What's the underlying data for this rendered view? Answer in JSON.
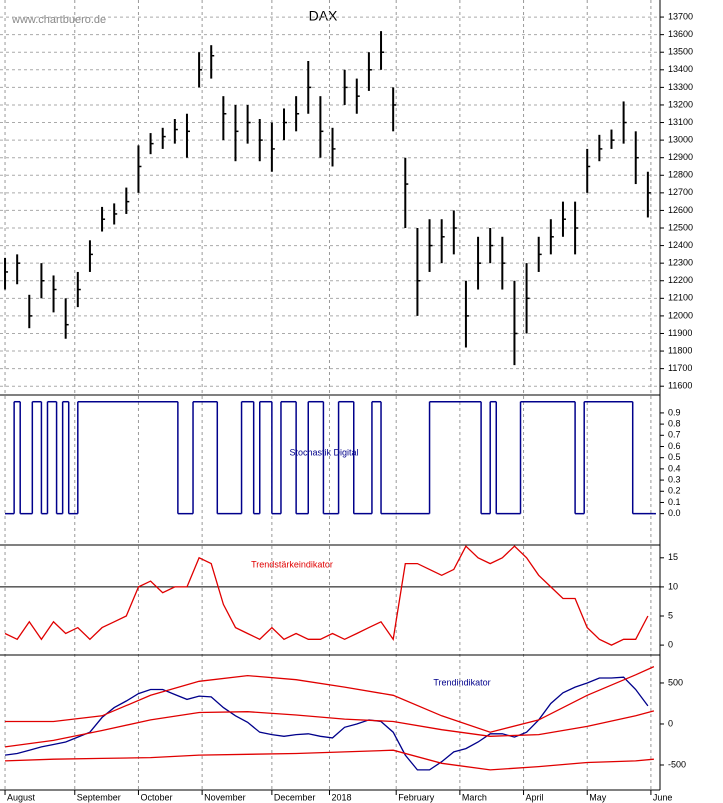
{
  "chart_data": [
    {
      "type": "ohlc",
      "title": "DAX",
      "source": "www.chartbuero.de",
      "color": "#000000",
      "grid": true,
      "x": [
        0,
        4,
        8,
        12,
        16,
        20,
        24,
        28,
        32,
        36,
        40,
        44,
        48,
        52,
        56,
        60,
        64,
        68,
        72,
        76,
        80,
        84,
        88,
        92,
        96,
        100,
        104,
        108,
        112,
        116,
        120,
        124,
        128,
        132,
        136,
        140,
        144,
        148,
        152,
        156,
        160,
        164,
        168,
        172,
        176,
        180,
        184,
        188,
        192,
        196,
        200,
        204,
        208,
        212
      ],
      "close": [
        12250,
        12300,
        12000,
        12200,
        12150,
        11950,
        12150,
        12350,
        12550,
        12580,
        12650,
        12850,
        12980,
        13020,
        13060,
        13050,
        13400,
        13480,
        13150,
        13050,
        13100,
        13000,
        12950,
        13100,
        13150,
        13300,
        13050,
        12950,
        13300,
        13250,
        13400,
        13500,
        13200,
        12750,
        12200,
        12400,
        12450,
        12500,
        12000,
        12300,
        12400,
        12300,
        11900,
        12100,
        12350,
        12450,
        12550,
        12500,
        12850,
        12950,
        13000,
        13100,
        12900,
        12700
      ],
      "high": [
        12330,
        12350,
        12120,
        12300,
        12230,
        12100,
        12250,
        12430,
        12620,
        12640,
        12730,
        12970,
        13040,
        13070,
        13120,
        13150,
        13500,
        13540,
        13250,
        13200,
        13200,
        13120,
        13100,
        13180,
        13250,
        13450,
        13250,
        13070,
        13400,
        13350,
        13500,
        13620,
        13300,
        12900,
        12500,
        12550,
        12550,
        12600,
        12200,
        12450,
        12500,
        12450,
        12200,
        12300,
        12450,
        12550,
        12650,
        12650,
        12950,
        13030,
        13060,
        13220,
        13050,
        12820
      ],
      "low": [
        12150,
        12180,
        11930,
        12100,
        12020,
        11870,
        12050,
        12250,
        12480,
        12520,
        12580,
        12700,
        12920,
        12950,
        12980,
        12900,
        13300,
        13350,
        13000,
        12880,
        12980,
        12880,
        12820,
        13000,
        13050,
        13150,
        12900,
        12850,
        13200,
        13150,
        13280,
        13400,
        13050,
        12500,
        12000,
        12250,
        12300,
        12350,
        11820,
        12150,
        12300,
        12150,
        11720,
        11900,
        12250,
        12350,
        12450,
        12350,
        12700,
        12880,
        12950,
        12980,
        12750,
        12560
      ],
      "ylim": [
        11550,
        13780
      ],
      "yticks": [
        11600,
        11700,
        11800,
        11900,
        12000,
        12100,
        12200,
        12300,
        12400,
        12500,
        12600,
        12700,
        12800,
        12900,
        13000,
        13100,
        13200,
        13300,
        13400,
        13500,
        13600,
        13700
      ]
    },
    {
      "type": "step",
      "label": "Stochastik Digital",
      "color": "#00008b",
      "x": [
        0,
        3,
        5,
        9,
        12,
        14,
        17,
        19,
        21,
        24,
        57,
        62,
        70,
        78,
        82,
        84,
        88,
        91,
        96,
        100,
        105,
        110,
        115,
        121,
        124,
        140,
        157,
        160,
        162,
        170,
        188,
        191,
        207,
        214
      ],
      "values": [
        0,
        1,
        0,
        1,
        0,
        1,
        0,
        1,
        0,
        1,
        0,
        1,
        0,
        1,
        0,
        1,
        0,
        1,
        0,
        1,
        0,
        1,
        0,
        1,
        0,
        1,
        0,
        1,
        0,
        1,
        0,
        1,
        0,
        0
      ],
      "ylim": [
        -0.28,
        1.06
      ],
      "yticks": [
        {
          "value": 0,
          "label": "0.0"
        },
        0.1,
        0.2,
        0.3,
        0.4,
        0.5,
        0.6,
        0.7,
        0.8,
        0.9
      ]
    },
    {
      "type": "line",
      "label": "Trendstärkeindikator",
      "reference_line": 10,
      "x": [
        0,
        4,
        8,
        12,
        16,
        20,
        24,
        28,
        32,
        36,
        40,
        44,
        48,
        52,
        56,
        60,
        64,
        68,
        72,
        76,
        80,
        84,
        88,
        92,
        96,
        100,
        104,
        108,
        112,
        116,
        120,
        124,
        128,
        132,
        136,
        140,
        144,
        148,
        152,
        156,
        160,
        164,
        168,
        172,
        176,
        180,
        184,
        188,
        192,
        196,
        200,
        204,
        208,
        212
      ],
      "series": [
        {
          "color": "#e00000",
          "values": [
            2,
            1,
            4,
            1,
            4,
            2,
            3,
            1,
            3,
            4,
            5,
            10,
            11,
            9,
            10,
            10,
            15,
            14,
            7,
            3,
            2,
            1,
            3,
            1,
            2,
            1,
            1,
            2,
            1,
            2,
            3,
            4,
            1,
            14,
            14,
            13,
            12,
            13,
            17,
            15,
            14,
            15,
            17,
            15,
            12,
            10,
            8,
            8,
            3,
            1,
            0,
            1,
            1,
            5
          ]
        }
      ],
      "ylim": [
        -1.7,
        17.2
      ],
      "yticks": [
        0,
        5,
        10,
        15
      ]
    },
    {
      "type": "line",
      "label": "Trendindikator",
      "x": [
        0,
        4,
        8,
        12,
        16,
        20,
        24,
        28,
        32,
        36,
        40,
        44,
        48,
        52,
        56,
        60,
        64,
        68,
        72,
        76,
        80,
        84,
        88,
        92,
        96,
        100,
        104,
        108,
        112,
        116,
        120,
        124,
        128,
        132,
        136,
        140,
        144,
        148,
        152,
        156,
        160,
        164,
        168,
        172,
        176,
        180,
        184,
        188,
        192,
        196,
        200,
        204,
        208,
        212
      ],
      "series": [
        {
          "color": "#00008b",
          "values": [
            -380,
            -360,
            -320,
            -280,
            -250,
            -220,
            -160,
            -100,
            80,
            200,
            280,
            370,
            420,
            420,
            360,
            300,
            340,
            330,
            200,
            100,
            20,
            -100,
            -130,
            -150,
            -130,
            -120,
            -150,
            -170,
            -40,
            0,
            50,
            30,
            -100,
            -380,
            -560,
            -560,
            -460,
            -340,
            -300,
            -220,
            -120,
            -120,
            -160,
            -100,
            50,
            250,
            380,
            450,
            500,
            560,
            560,
            570,
            420,
            220
          ]
        },
        {
          "color": "#e00000",
          "x": [
            0,
            16,
            32,
            48,
            64,
            80,
            96,
            112,
            128,
            144,
            160,
            176,
            192,
            208,
            214
          ],
          "values": [
            30,
            30,
            100,
            350,
            520,
            590,
            540,
            450,
            350,
            100,
            -100,
            50,
            350,
            600,
            700
          ]
        },
        {
          "color": "#e00000",
          "x": [
            0,
            16,
            32,
            48,
            64,
            80,
            96,
            112,
            128,
            144,
            160,
            176,
            192,
            208,
            214
          ],
          "values": [
            -280,
            -200,
            -80,
            50,
            140,
            150,
            110,
            60,
            30,
            -70,
            -150,
            -130,
            -30,
            100,
            160
          ]
        },
        {
          "color": "#e00000",
          "x": [
            0,
            16,
            32,
            48,
            64,
            80,
            96,
            112,
            128,
            144,
            160,
            176,
            192,
            208,
            214
          ],
          "values": [
            -450,
            -430,
            -420,
            -410,
            -380,
            -370,
            -360,
            -340,
            -320,
            -480,
            -560,
            -520,
            -470,
            -450,
            -430
          ]
        }
      ],
      "ylim": [
        -805,
        841
      ],
      "yticks": [
        -500,
        0,
        500
      ],
      "xlim": [
        -1,
        216
      ],
      "xticks": [
        {
          "value": 0,
          "label": "August"
        },
        {
          "value": 23,
          "label": "September"
        },
        {
          "value": 44,
          "label": "October"
        },
        {
          "value": 65,
          "label": "November"
        },
        {
          "value": 88,
          "label": "December"
        },
        {
          "value": 107,
          "label": "2018"
        },
        {
          "value": 129,
          "label": "February"
        },
        {
          "value": 150,
          "label": "March"
        },
        {
          "value": 171,
          "label": "April"
        },
        {
          "value": 192,
          "label": "May"
        },
        {
          "value": 213,
          "label": "June"
        }
      ]
    }
  ]
}
